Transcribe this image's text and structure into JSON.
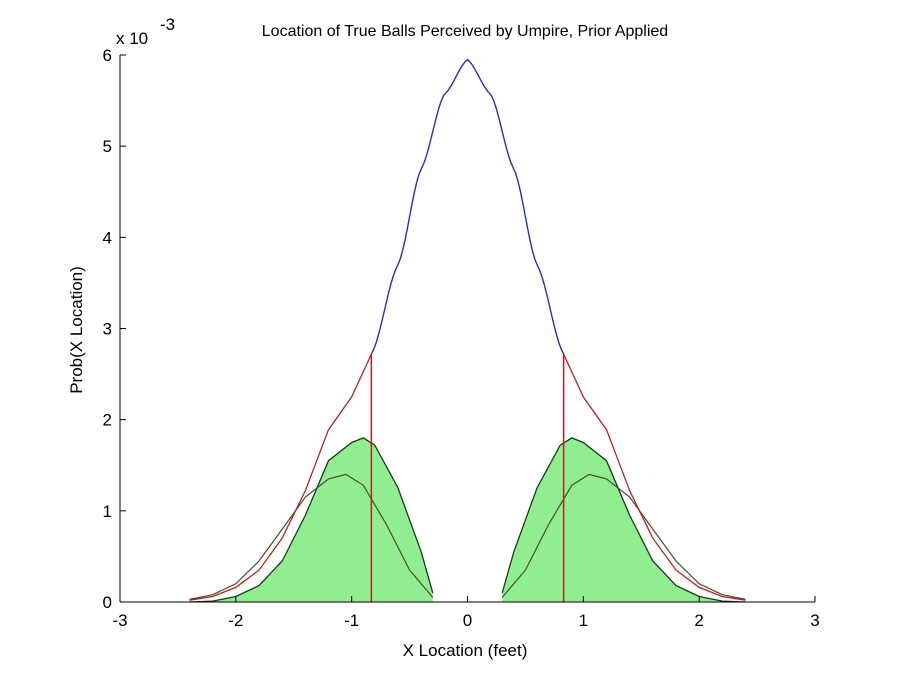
{
  "chart_data": {
    "type": "area",
    "title": "Location of True Balls Perceived by Umpire, Prior Applied",
    "xlabel": "X Location (feet)",
    "ylabel": "Prob(X Location)",
    "y_exponent_label": "x 10",
    "y_exponent_power": "-3",
    "xlim": [
      -3,
      3
    ],
    "ylim": [
      0,
      6
    ],
    "x_ticks": [
      "-3",
      "-2",
      "-1",
      "0",
      "1",
      "2",
      "3"
    ],
    "y_ticks": [
      "0",
      "1",
      "2",
      "3",
      "4",
      "5",
      "6"
    ],
    "grid": false,
    "legend": "none",
    "strike_zone_edges": [
      -0.83,
      0.83
    ],
    "series": [
      {
        "role": "overall distribution",
        "color": "#2b2bc8",
        "x": [
          -2.4,
          -2.2,
          -2.0,
          -1.8,
          -1.6,
          -1.4,
          -1.2,
          -1.0,
          -0.83,
          -0.6,
          -0.4,
          -0.2,
          0.0,
          0.2,
          0.4,
          0.6,
          0.83,
          1.0,
          1.2,
          1.4,
          1.6,
          1.8,
          2.0,
          2.2,
          2.4
        ],
        "y": [
          0.02,
          0.06,
          0.16,
          0.35,
          0.7,
          1.22,
          1.89,
          2.25,
          2.72,
          3.7,
          4.75,
          5.57,
          5.95,
          5.57,
          4.75,
          3.7,
          2.72,
          2.25,
          1.89,
          1.22,
          0.7,
          0.35,
          0.16,
          0.06,
          0.02
        ]
      },
      {
        "role": "perceived balls (prior applied)",
        "color": "#b82020",
        "x": [
          -2.4,
          -2.2,
          -2.0,
          -1.8,
          -1.6,
          -1.4,
          -1.2,
          -1.0,
          -0.83,
          0.83,
          1.0,
          1.2,
          1.4,
          1.6,
          1.8,
          2.0,
          2.2,
          2.4
        ],
        "y": [
          0.02,
          0.06,
          0.16,
          0.35,
          0.7,
          1.22,
          1.89,
          2.25,
          2.72,
          2.72,
          2.25,
          1.89,
          1.22,
          0.7,
          0.35,
          0.16,
          0.06,
          0.02
        ]
      },
      {
        "role": "true balls",
        "color": "#1a6a1a",
        "fill": "#90ee90",
        "x": [
          -2.4,
          -2.2,
          -2.0,
          -1.8,
          -1.6,
          -1.4,
          -1.2,
          -1.0,
          -0.9,
          -0.8,
          -0.6,
          -0.4,
          -0.3,
          0.3,
          0.4,
          0.6,
          0.8,
          0.9,
          1.0,
          1.2,
          1.4,
          1.6,
          1.8,
          2.0,
          2.2,
          2.4
        ],
        "y": [
          0.0,
          0.01,
          0.06,
          0.18,
          0.45,
          0.95,
          1.55,
          1.75,
          1.8,
          1.72,
          1.25,
          0.55,
          0.1,
          0.1,
          0.55,
          1.25,
          1.72,
          1.8,
          1.75,
          1.55,
          0.95,
          0.45,
          0.18,
          0.06,
          0.01,
          0.0
        ]
      },
      {
        "role": "perceived ball distribution",
        "color": "#4a4a2a",
        "x": [
          -2.4,
          -2.2,
          -2.0,
          -1.8,
          -1.6,
          -1.4,
          -1.2,
          -1.05,
          -0.9,
          -0.7,
          -0.5,
          -0.3,
          0.3,
          0.5,
          0.7,
          0.9,
          1.05,
          1.2,
          1.4,
          1.6,
          1.8,
          2.0,
          2.2,
          2.4
        ],
        "y": [
          0.03,
          0.08,
          0.2,
          0.45,
          0.8,
          1.15,
          1.35,
          1.4,
          1.28,
          0.85,
          0.35,
          0.05,
          0.05,
          0.35,
          0.85,
          1.28,
          1.4,
          1.35,
          1.15,
          0.8,
          0.45,
          0.2,
          0.08,
          0.03
        ]
      }
    ]
  }
}
